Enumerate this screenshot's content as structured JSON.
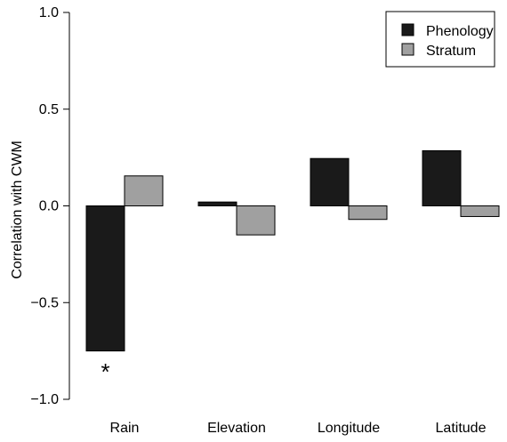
{
  "chart_data": {
    "type": "bar",
    "title": "",
    "xlabel": "",
    "ylabel": "Correlation with CWM",
    "ylim": [
      -1.0,
      1.0
    ],
    "yticks": [
      -1.0,
      -0.5,
      0.0,
      0.5,
      1.0
    ],
    "ytick_labels": [
      "−1.0",
      "−0.5",
      "0.0",
      "0.5",
      "1.0"
    ],
    "categories": [
      "Rain",
      "Elevation",
      "Longitude",
      "Latitude"
    ],
    "series": [
      {
        "name": "Phenology",
        "color": "#1a1a1a",
        "values": [
          -0.75,
          0.02,
          0.245,
          0.285
        ]
      },
      {
        "name": "Stratum",
        "color": "#a0a0a0",
        "values": [
          0.155,
          -0.15,
          -0.07,
          -0.055
        ]
      }
    ],
    "annotations": [
      {
        "text": "*",
        "category": "Rain",
        "series": "Phenology",
        "value": -0.82
      }
    ],
    "legend_position": "top-right",
    "grid": false
  }
}
